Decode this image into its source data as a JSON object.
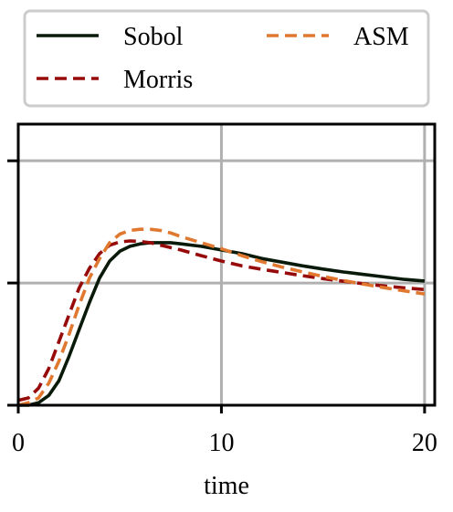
{
  "chart_data": {
    "type": "line",
    "title": "",
    "xlabel": "time",
    "ylabel": "",
    "xlim": [
      0,
      20.5
    ],
    "ylim": [
      0,
      1.15
    ],
    "x_ticks": [
      0,
      10,
      20
    ],
    "x_tick_labels": [
      "0",
      "10",
      "20"
    ],
    "y_ticks": [
      0,
      0.5,
      1.0
    ],
    "y_tick_labels": [
      "",
      "",
      ""
    ],
    "grid": true,
    "legend": {
      "placement": "top",
      "columns": 2
    },
    "series": [
      {
        "name": "Sobol",
        "color": "#0a1a0a",
        "style": "solid",
        "x": [
          0,
          0.5,
          1,
          1.5,
          2,
          2.5,
          3,
          3.5,
          4,
          4.5,
          5,
          5.5,
          6,
          6.5,
          7,
          7.5,
          8,
          9,
          10,
          11,
          12,
          13,
          14,
          15,
          16,
          17,
          18,
          19,
          20
        ],
        "y": [
          0.0,
          0.0,
          0.01,
          0.04,
          0.1,
          0.2,
          0.31,
          0.42,
          0.52,
          0.59,
          0.63,
          0.65,
          0.66,
          0.665,
          0.665,
          0.665,
          0.66,
          0.65,
          0.635,
          0.62,
          0.6,
          0.585,
          0.57,
          0.557,
          0.545,
          0.535,
          0.525,
          0.515,
          0.508
        ]
      },
      {
        "name": "Morris",
        "color": "#960a0a",
        "style": "dashed",
        "x": [
          0,
          0.5,
          1,
          1.5,
          2,
          2.5,
          3,
          3.5,
          4,
          4.5,
          5,
          5.5,
          6,
          6.5,
          7,
          7.5,
          8,
          9,
          10,
          11,
          12,
          13,
          14,
          15,
          16,
          17,
          18,
          19,
          20
        ],
        "y": [
          0.02,
          0.03,
          0.07,
          0.15,
          0.26,
          0.37,
          0.48,
          0.56,
          0.62,
          0.655,
          0.668,
          0.672,
          0.67,
          0.665,
          0.655,
          0.645,
          0.635,
          0.612,
          0.59,
          0.57,
          0.556,
          0.543,
          0.53,
          0.518,
          0.507,
          0.497,
          0.488,
          0.48,
          0.473
        ]
      },
      {
        "name": "ASM",
        "color": "#e07830",
        "style": "dashed",
        "x": [
          0,
          0.5,
          1,
          1.5,
          2,
          2.5,
          3,
          3.5,
          4,
          4.5,
          5,
          5.5,
          6,
          6.5,
          7,
          7.5,
          8,
          9,
          10,
          11,
          12,
          13,
          14,
          15,
          16,
          17,
          18,
          19,
          20
        ],
        "y": [
          0.0,
          0.01,
          0.03,
          0.09,
          0.18,
          0.29,
          0.41,
          0.52,
          0.6,
          0.665,
          0.7,
          0.715,
          0.72,
          0.72,
          0.715,
          0.705,
          0.69,
          0.665,
          0.64,
          0.612,
          0.587,
          0.565,
          0.545,
          0.527,
          0.51,
          0.495,
          0.481,
          0.468,
          0.455
        ]
      }
    ]
  }
}
